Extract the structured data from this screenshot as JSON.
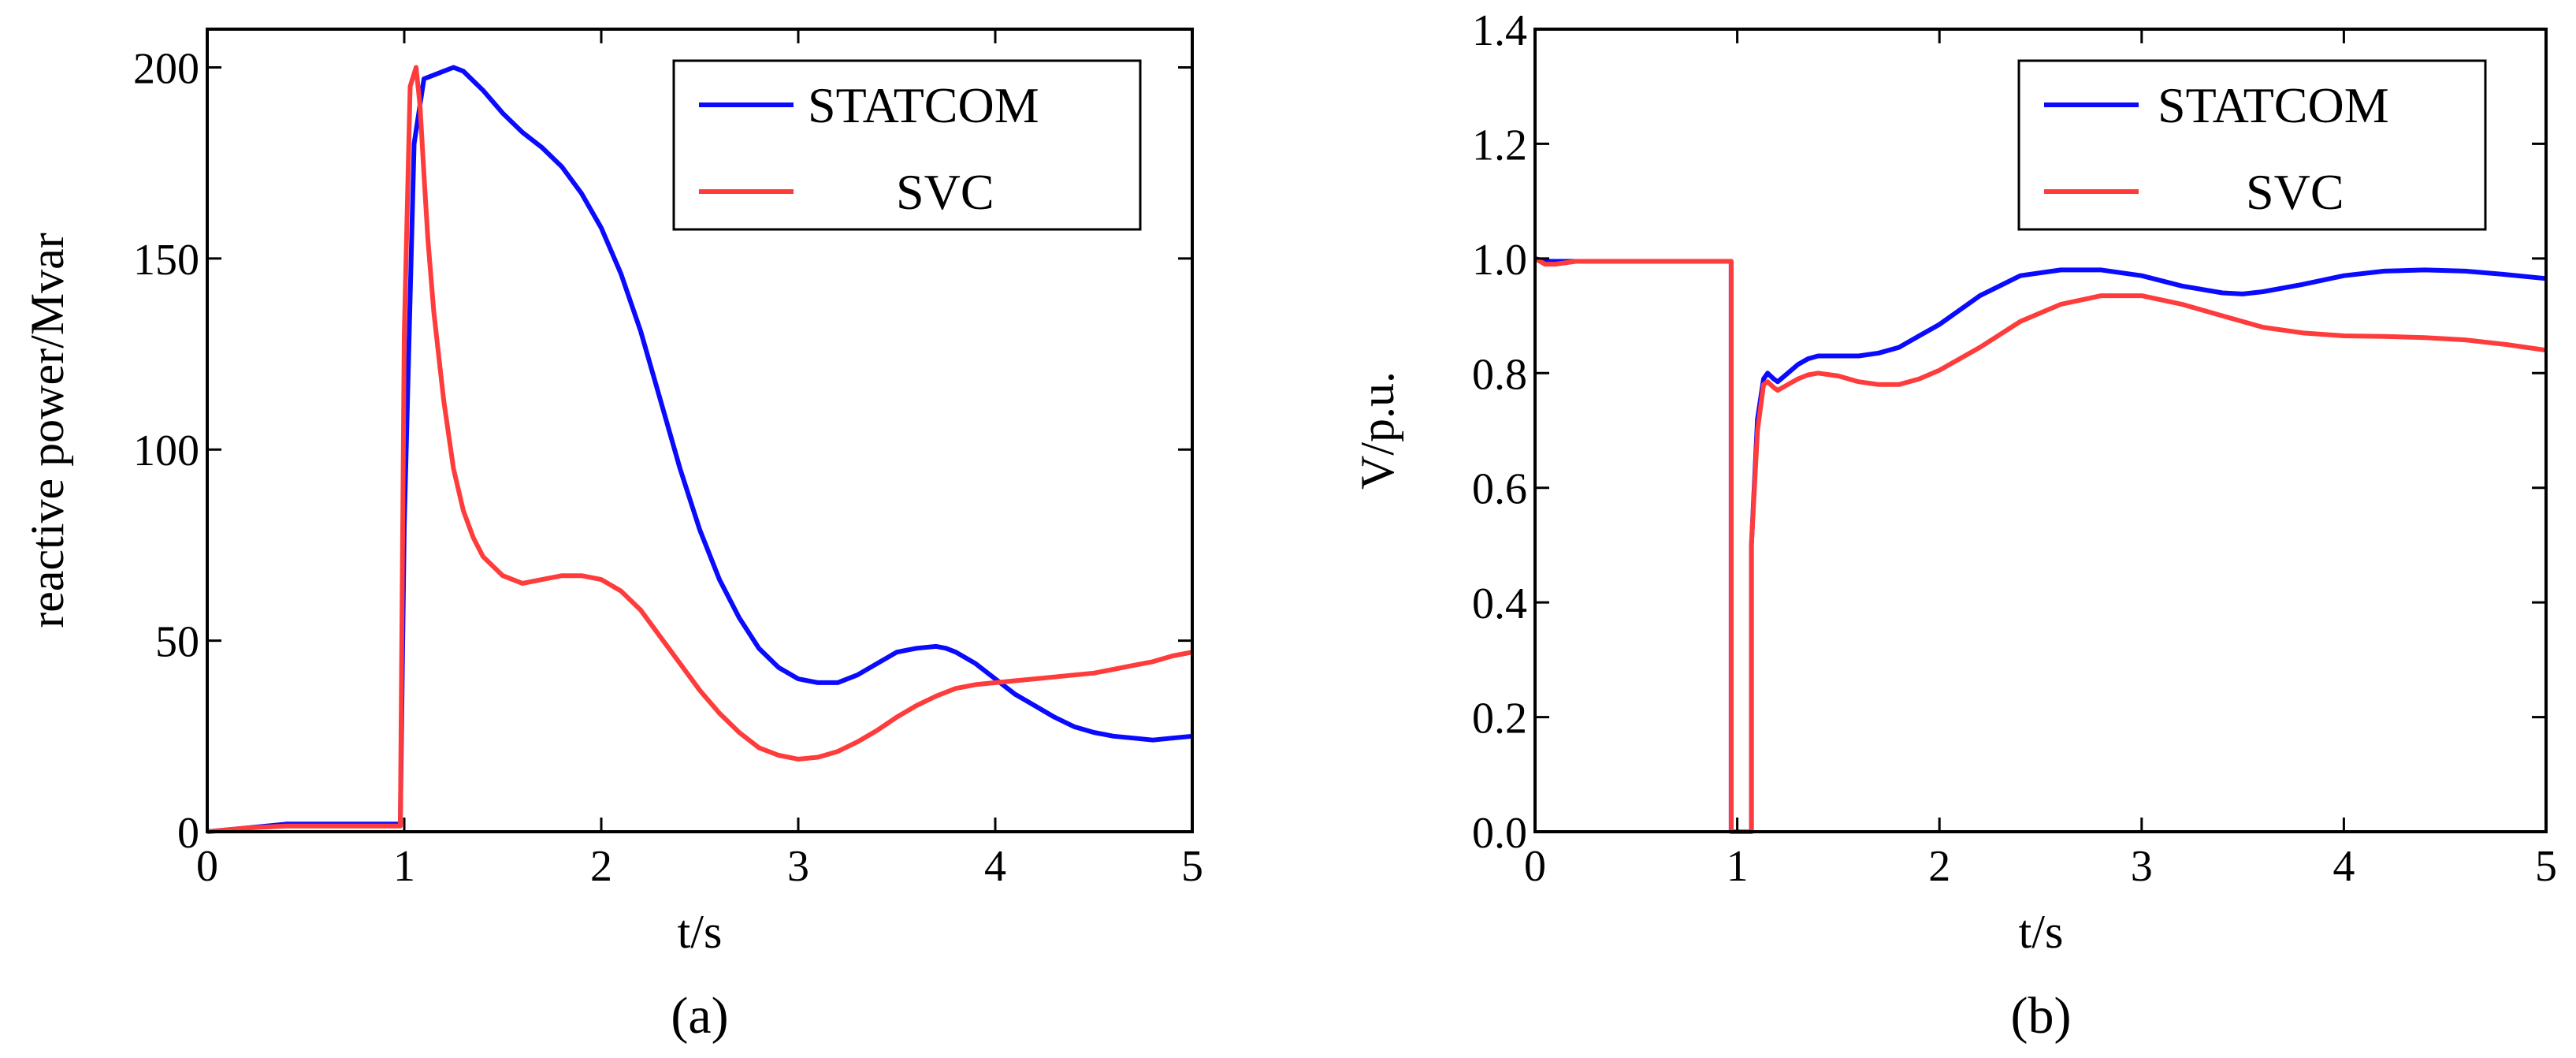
{
  "chart_data": [
    {
      "type": "line",
      "panel_label": "(a)",
      "xlabel": "t/s",
      "ylabel": "reactive power/Mvar",
      "xlim": [
        0,
        5
      ],
      "ylim": [
        0,
        210
      ],
      "xticks": [
        0,
        1,
        2,
        3,
        4,
        5
      ],
      "yticks": [
        0,
        50,
        100,
        150,
        200
      ],
      "xtick_labels": [
        "0",
        "1",
        "2",
        "3",
        "4",
        "5"
      ],
      "ytick_labels": [
        "0",
        "50",
        "100",
        "150",
        "200"
      ],
      "legend_position": "top-right",
      "series": [
        {
          "name": "STATCOM",
          "color": "#0a0aff",
          "x": [
            0,
            0.2,
            0.4,
            0.6,
            0.8,
            0.95,
            0.98,
            1.0,
            1.05,
            1.1,
            1.15,
            1.2,
            1.25,
            1.3,
            1.4,
            1.5,
            1.6,
            1.7,
            1.8,
            1.9,
            2.0,
            2.1,
            2.2,
            2.3,
            2.4,
            2.5,
            2.6,
            2.7,
            2.8,
            2.9,
            3.0,
            3.1,
            3.2,
            3.3,
            3.4,
            3.5,
            3.6,
            3.7,
            3.75,
            3.8,
            3.9,
            4.0,
            4.1,
            4.2,
            4.3,
            4.4,
            4.5,
            4.6,
            4.7,
            4.8,
            4.9,
            5.0
          ],
          "y": [
            0,
            1,
            2,
            2,
            2,
            2,
            2,
            80,
            180,
            197,
            198,
            199,
            200,
            199,
            194,
            188,
            183,
            179,
            174,
            167,
            158,
            146,
            131,
            113,
            95,
            79,
            66,
            56,
            48,
            43,
            40,
            39,
            39,
            41,
            44,
            47,
            48,
            48.5,
            48,
            47,
            44,
            40,
            36,
            33,
            30,
            27.5,
            26,
            25,
            24.5,
            24,
            24.5,
            25
          ]
        },
        {
          "name": "SVC",
          "color": "#ff3c3c",
          "x": [
            0,
            0.2,
            0.4,
            0.6,
            0.8,
            0.95,
            0.98,
            1.0,
            1.03,
            1.06,
            1.08,
            1.1,
            1.12,
            1.15,
            1.2,
            1.25,
            1.3,
            1.35,
            1.4,
            1.5,
            1.6,
            1.7,
            1.8,
            1.9,
            2.0,
            2.1,
            2.2,
            2.3,
            2.4,
            2.5,
            2.6,
            2.7,
            2.8,
            2.9,
            3.0,
            3.1,
            3.2,
            3.3,
            3.4,
            3.5,
            3.6,
            3.7,
            3.8,
            3.9,
            4.0,
            4.1,
            4.2,
            4.3,
            4.4,
            4.5,
            4.6,
            4.7,
            4.8,
            4.9,
            5.0
          ],
          "y": [
            0,
            1,
            1.5,
            1.5,
            1.5,
            1.5,
            1.5,
            130,
            195,
            200,
            190,
            172,
            155,
            136,
            113,
            95,
            84,
            77,
            72,
            67,
            65,
            66,
            67,
            67,
            66,
            63,
            58,
            51,
            44,
            37,
            31,
            26,
            22,
            20,
            19,
            19.5,
            21,
            23.5,
            26.5,
            30,
            33,
            35.5,
            37.5,
            38.5,
            39,
            39.5,
            40,
            40.5,
            41,
            41.5,
            42.5,
            43.5,
            44.5,
            46,
            47
          ]
        }
      ]
    },
    {
      "type": "line",
      "panel_label": "(b)",
      "xlabel": "t/s",
      "ylabel": "V/p.u.",
      "xlim": [
        0,
        5
      ],
      "ylim": [
        0,
        1.4
      ],
      "xticks": [
        0,
        1,
        2,
        3,
        4,
        5
      ],
      "yticks": [
        0.0,
        0.2,
        0.4,
        0.6,
        0.8,
        1.0,
        1.2,
        1.4
      ],
      "xtick_labels": [
        "0",
        "1",
        "2",
        "3",
        "4",
        "5"
      ],
      "ytick_labels": [
        "0.0",
        "0.2",
        "0.4",
        "0.6",
        "0.8",
        "1.0",
        "1.2",
        "1.4"
      ],
      "legend_position": "top-right",
      "series": [
        {
          "name": "STATCOM",
          "color": "#0a0aff",
          "x": [
            0,
            0.05,
            0.1,
            0.2,
            0.5,
            0.8,
            0.97,
            0.97,
            1.0,
            1.07,
            1.07,
            1.1,
            1.13,
            1.15,
            1.18,
            1.2,
            1.25,
            1.3,
            1.35,
            1.4,
            1.5,
            1.6,
            1.7,
            1.8,
            1.9,
            2.0,
            2.2,
            2.4,
            2.6,
            2.8,
            3.0,
            3.2,
            3.4,
            3.5,
            3.6,
            3.8,
            4.0,
            4.2,
            4.4,
            4.6,
            4.8,
            5.0
          ],
          "y": [
            1.0,
            0.995,
            0.995,
            0.995,
            0.995,
            0.995,
            0.995,
            0.0,
            0.0,
            0.0,
            0.5,
            0.72,
            0.79,
            0.8,
            0.79,
            0.785,
            0.8,
            0.815,
            0.825,
            0.83,
            0.83,
            0.83,
            0.835,
            0.845,
            0.865,
            0.885,
            0.935,
            0.97,
            0.98,
            0.98,
            0.97,
            0.952,
            0.94,
            0.938,
            0.942,
            0.955,
            0.97,
            0.978,
            0.98,
            0.978,
            0.972,
            0.965
          ]
        },
        {
          "name": "SVC",
          "color": "#ff3c3c",
          "x": [
            0,
            0.05,
            0.1,
            0.2,
            0.5,
            0.8,
            0.97,
            0.97,
            1.0,
            1.07,
            1.07,
            1.1,
            1.13,
            1.15,
            1.18,
            1.2,
            1.25,
            1.3,
            1.35,
            1.4,
            1.5,
            1.6,
            1.7,
            1.8,
            1.9,
            2.0,
            2.2,
            2.4,
            2.6,
            2.8,
            3.0,
            3.2,
            3.4,
            3.6,
            3.8,
            4.0,
            4.2,
            4.4,
            4.6,
            4.8,
            5.0
          ],
          "y": [
            1.0,
            0.99,
            0.99,
            0.995,
            0.995,
            0.995,
            0.995,
            0.0,
            0.0,
            0.0,
            0.5,
            0.7,
            0.78,
            0.785,
            0.775,
            0.77,
            0.78,
            0.79,
            0.797,
            0.8,
            0.795,
            0.785,
            0.78,
            0.78,
            0.79,
            0.805,
            0.845,
            0.89,
            0.92,
            0.935,
            0.935,
            0.92,
            0.9,
            0.88,
            0.87,
            0.865,
            0.864,
            0.862,
            0.858,
            0.85,
            0.84
          ]
        }
      ]
    }
  ]
}
